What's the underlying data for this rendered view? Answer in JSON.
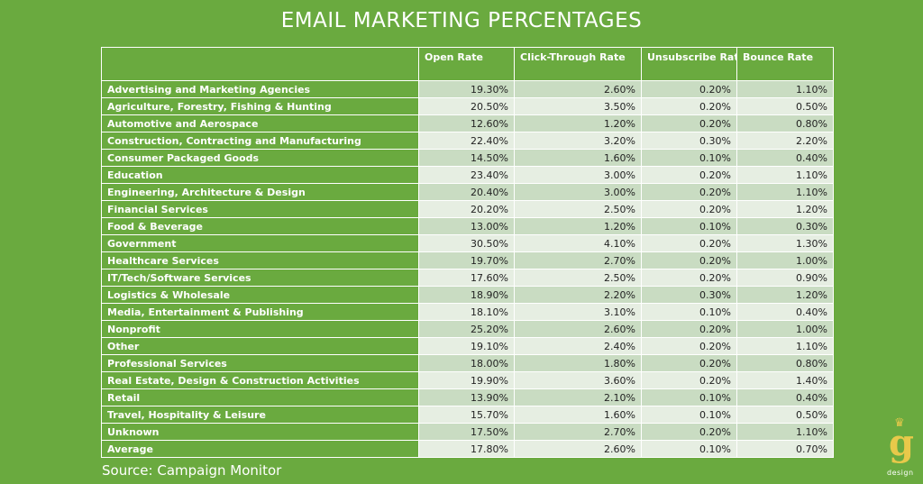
{
  "title": "EMAIL MARKETING PERCENTAGES",
  "source": "Source: Campaign Monitor",
  "logo": {
    "letter": "g",
    "text": "design"
  },
  "chart_data": {
    "type": "table",
    "title": "EMAIL MARKETING PERCENTAGES",
    "columns": [
      "",
      "Open Rate",
      "Click-Through Rate",
      "Unsubscribe Rate",
      "Bounce Rate"
    ],
    "rows": [
      {
        "label": "Advertising and Marketing Agencies",
        "values": [
          "19.30%",
          "2.60%",
          "0.20%",
          "1.10%"
        ]
      },
      {
        "label": "Agriculture, Forestry, Fishing & Hunting",
        "values": [
          "20.50%",
          "3.50%",
          "0.20%",
          "0.50%"
        ]
      },
      {
        "label": "Automotive and Aerospace",
        "values": [
          "12.60%",
          "1.20%",
          "0.20%",
          "0.80%"
        ]
      },
      {
        "label": "Construction, Contracting and Manufacturing",
        "values": [
          "22.40%",
          "3.20%",
          "0.30%",
          "2.20%"
        ]
      },
      {
        "label": "Consumer Packaged Goods",
        "values": [
          "14.50%",
          "1.60%",
          "0.10%",
          "0.40%"
        ]
      },
      {
        "label": "Education",
        "values": [
          "23.40%",
          "3.00%",
          "0.20%",
          "1.10%"
        ]
      },
      {
        "label": "Engineering, Architecture & Design",
        "values": [
          "20.40%",
          "3.00%",
          "0.20%",
          "1.10%"
        ]
      },
      {
        "label": "Financial Services",
        "values": [
          "20.20%",
          "2.50%",
          "0.20%",
          "1.20%"
        ]
      },
      {
        "label": "Food & Beverage",
        "values": [
          "13.00%",
          "1.20%",
          "0.10%",
          "0.30%"
        ]
      },
      {
        "label": "Government",
        "values": [
          "30.50%",
          "4.10%",
          "0.20%",
          "1.30%"
        ]
      },
      {
        "label": "Healthcare Services",
        "values": [
          "19.70%",
          "2.70%",
          "0.20%",
          "1.00%"
        ]
      },
      {
        "label": "IT/Tech/Software Services",
        "values": [
          "17.60%",
          "2.50%",
          "0.20%",
          "0.90%"
        ]
      },
      {
        "label": "Logistics & Wholesale",
        "values": [
          "18.90%",
          "2.20%",
          "0.30%",
          "1.20%"
        ]
      },
      {
        "label": "Media, Entertainment & Publishing",
        "values": [
          "18.10%",
          "3.10%",
          "0.10%",
          "0.40%"
        ]
      },
      {
        "label": "Nonprofit",
        "values": [
          "25.20%",
          "2.60%",
          "0.20%",
          "1.00%"
        ]
      },
      {
        "label": "Other",
        "values": [
          "19.10%",
          "2.40%",
          "0.20%",
          "1.10%"
        ]
      },
      {
        "label": "Professional Services",
        "values": [
          "18.00%",
          "1.80%",
          "0.20%",
          "0.80%"
        ]
      },
      {
        "label": "Real Estate, Design & Construction Activities",
        "values": [
          "19.90%",
          "3.60%",
          "0.20%",
          "1.40%"
        ]
      },
      {
        "label": "Retail",
        "values": [
          "13.90%",
          "2.10%",
          "0.10%",
          "0.40%"
        ]
      },
      {
        "label": "Travel, Hospitality & Leisure",
        "values": [
          "15.70%",
          "1.60%",
          "0.10%",
          "0.50%"
        ]
      },
      {
        "label": "Unknown",
        "values": [
          "17.50%",
          "2.70%",
          "0.20%",
          "1.10%"
        ]
      },
      {
        "label": "Average",
        "values": [
          "17.80%",
          "2.60%",
          "0.10%",
          "0.70%"
        ]
      }
    ]
  },
  "colors": {
    "background": "#6aaa3f",
    "row_light": "#e6eee2",
    "row_dark": "#c9dcc2",
    "logo_gold": "#e8c94a"
  }
}
